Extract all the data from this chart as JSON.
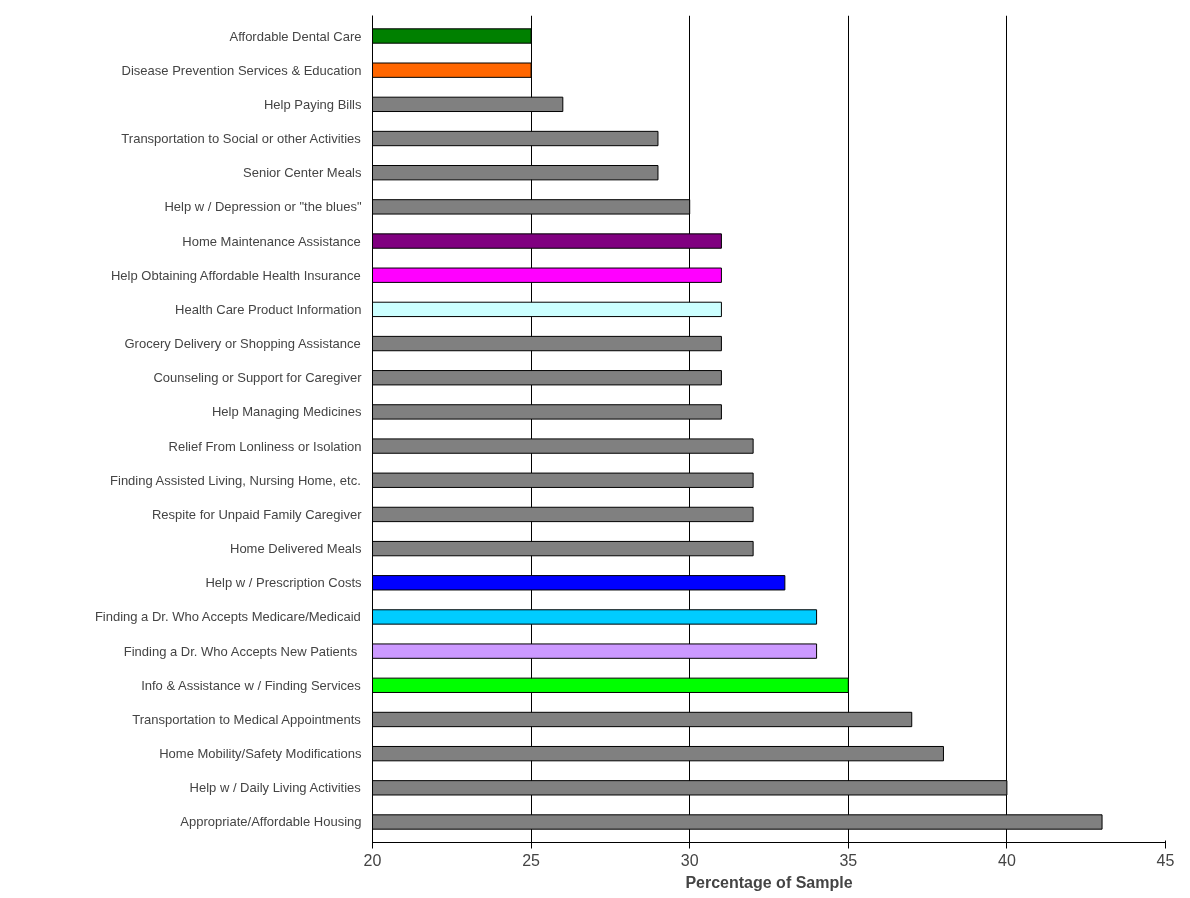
{
  "chart_data": {
    "type": "bar",
    "orientation": "horizontal",
    "xlabel": "Percentage of Sample",
    "categories": [
      "Affordable Dental Care",
      "Disease Prevention Services & Education",
      "Help Paying Bills",
      "Transportation to Social or other Activities",
      "Senior Center Meals",
      "Help w / Depression or \"the blues\"",
      "Home Maintenance Assistance",
      "Help Obtaining Affordable Health Insurance",
      "Health Care Product Information",
      "Grocery Delivery or Shopping Assistance",
      "Counseling or Support for Caregiver",
      "Help Managing Medicines",
      "Relief From Lonliness or Isolation",
      "Finding Assisted Living, Nursing Home, etc.",
      "Respite for Unpaid Family Caregiver",
      "Home Delivered Meals",
      "Help w / Prescription Costs",
      "Finding a Dr. Who Accepts Medicare/Medicaid",
      "Finding a Dr. Who Accepts New  Patients",
      "Info & Assistance w / Finding Services",
      "Transportation to Medical Appointments",
      "Home Mobility/Safety Modifications",
      "Help w / Daily Living Activities",
      "Appropriate/Affordable Housing"
    ],
    "values": [
      25,
      25,
      26,
      29,
      29,
      30,
      31,
      31,
      31,
      31,
      31,
      31,
      32,
      32,
      32,
      32,
      33,
      34,
      34,
      35,
      37,
      38,
      40,
      43
    ],
    "colors": [
      "#008000",
      "#ff6600",
      "#808080",
      "#808080",
      "#808080",
      "#808080",
      "#800080",
      "#ff00ff",
      "#ccffff",
      "#808080",
      "#808080",
      "#808080",
      "#808080",
      "#808080",
      "#808080",
      "#808080",
      "#0000ff",
      "#00ccff",
      "#cc99ff",
      "#00ff00",
      "#808080",
      "#808080",
      "#808080",
      "#808080"
    ],
    "xlim": [
      20,
      45
    ],
    "xticks": [
      20,
      25,
      30,
      35,
      40,
      45
    ],
    "grid": "x"
  }
}
